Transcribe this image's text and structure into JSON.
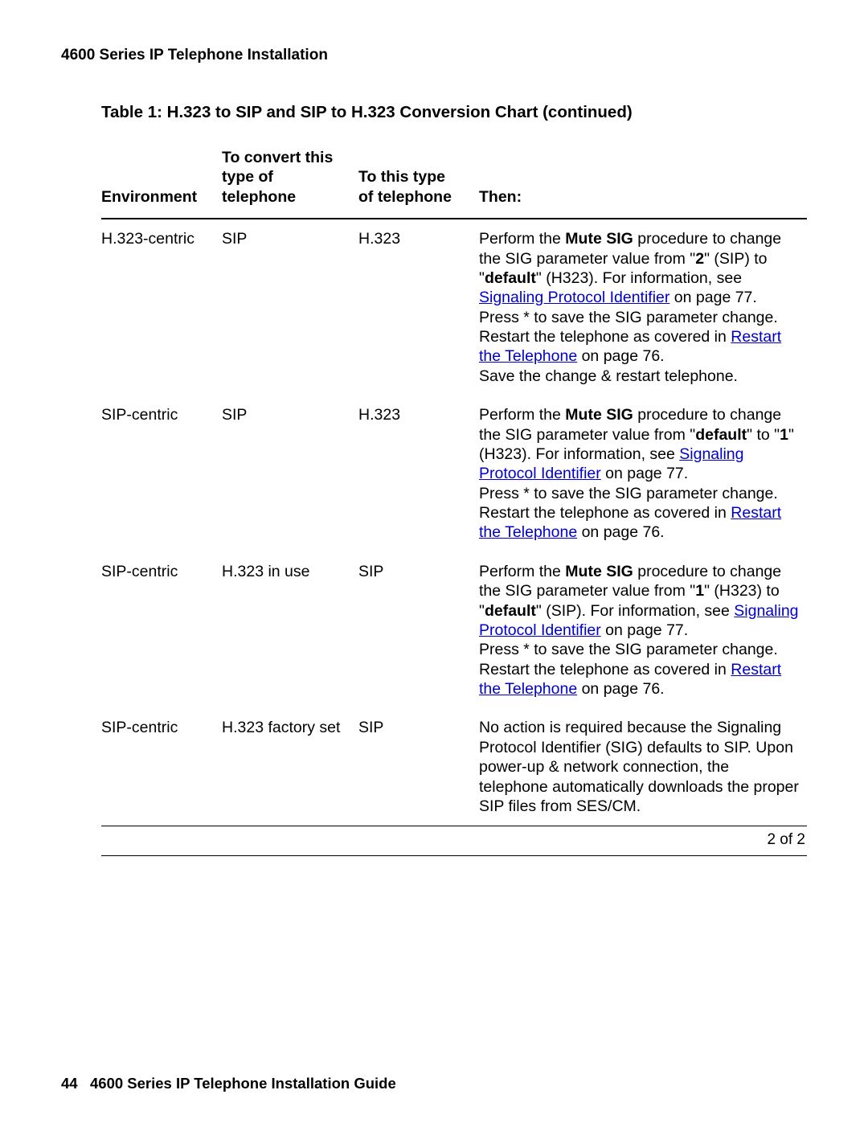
{
  "header": {
    "section_title": "4600 Series IP Telephone Installation"
  },
  "table": {
    "title": "Table 1: H.323 to SIP and SIP to H.323 Conversion Chart (continued)",
    "columns": {
      "env": "Environment",
      "from_line1": "To convert this",
      "from_line2": "type of telephone",
      "to_line1": "To this type",
      "to_line2": "of telephone",
      "then": "Then:"
    },
    "rows": [
      {
        "env": "H.323-centric",
        "from": "SIP",
        "to": "H.323",
        "then": {
          "pre1": "Perform the ",
          "b1": "Mute SIG",
          "post1": " procedure to change the SIG parameter value from \"",
          "b2": "2",
          "mid1": "\" (SIP) to \"",
          "b3": "default",
          "mid2": "\" (H323). For information, see ",
          "link1": "Signaling Protocol Identifier",
          "post_link1": " on page 77.",
          "line2a": "Press * to save the SIG parameter change. Restart the telephone as covered in ",
          "link2": "Restart the Telephone",
          "line2b": " on page 76.",
          "line3": "Save the change & restart telephone."
        }
      },
      {
        "env": "SIP-centric",
        "from": "SIP",
        "to": "H.323",
        "then": {
          "pre1": "Perform the ",
          "b1": "Mute SIG",
          "post1": " procedure to change the SIG parameter value from \"",
          "b2": "default",
          "mid1": "\" to \"",
          "b3": "1",
          "mid2": "\" (H323). For information, see ",
          "link1": "Signaling Protocol Identifier",
          "post_link1": " on page 77.",
          "line2a": "Press * to save the SIG parameter change. Restart the telephone as covered in ",
          "link2": "Restart the Telephone",
          "line2b": " on page 76."
        }
      },
      {
        "env": "SIP-centric",
        "from": "H.323 in use",
        "to": "SIP",
        "then": {
          "pre1": "Perform the ",
          "b1": "Mute SIG",
          "post1": " procedure to change the SIG parameter value from \"",
          "b2": "1",
          "mid1": "\" (H323) to \"",
          "b3": "default",
          "mid2": "\" (SIP). For information, see ",
          "link1": "Signaling Protocol Identifier",
          "post_link1": " on page 77.",
          "line2a": "Press * to save the SIG parameter change. Restart the telephone as covered in ",
          "link2": "Restart the Telephone",
          "line2b": " on page 76."
        }
      },
      {
        "env": "SIP-centric",
        "from": "H.323 factory set",
        "to": "SIP",
        "then_plain": "No action is required because the Signaling Protocol Identifier (SIG) defaults to SIP. Upon power-up & network connection, the telephone automatically downloads the proper SIP files from SES/CM."
      }
    ],
    "page_indicator": "2 of 2"
  },
  "footer": {
    "page_no": "44",
    "doc_title": "4600 Series IP Telephone Installation Guide"
  }
}
